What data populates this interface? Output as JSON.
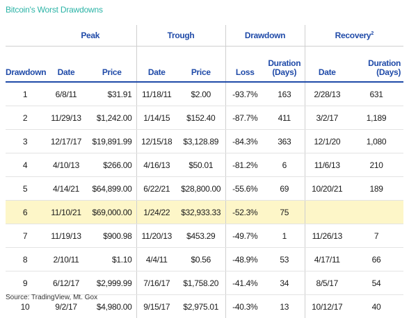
{
  "title": "Bitcoin's Worst Drawdowns",
  "groups": {
    "peak": "Peak",
    "trough": "Trough",
    "drawdown": "Drawdown",
    "recovery": "Recovery",
    "recovery_sup": "2"
  },
  "columns": {
    "drawdown": "Drawdown",
    "peak_date": "Date",
    "peak_price": "Price",
    "trough_date": "Date",
    "trough_price": "Price",
    "loss": "Loss",
    "duration_line1": "Duration",
    "duration_line2": "(Days)",
    "recovery_date": "Date",
    "recovery_duration_line1": "Duration",
    "recovery_duration_line2": "(Days)"
  },
  "rows": [
    {
      "rank": "1",
      "peak_date": "6/8/11",
      "peak_price": "$31.91",
      "trough_date": "11/18/11",
      "trough_price": "$2.00",
      "loss": "-93.7%",
      "duration": "163",
      "recovery_date": "2/28/13",
      "recovery_days": "631"
    },
    {
      "rank": "2",
      "peak_date": "11/29/13",
      "peak_price": "$1,242.00",
      "trough_date": "1/14/15",
      "trough_price": "$152.40",
      "loss": "-87.7%",
      "duration": "411",
      "recovery_date": "3/2/17",
      "recovery_days": "1,189"
    },
    {
      "rank": "3",
      "peak_date": "12/17/17",
      "peak_price": "$19,891.99",
      "trough_date": "12/15/18",
      "trough_price": "$3,128.89",
      "loss": "-84.3%",
      "duration": "363",
      "recovery_date": "12/1/20",
      "recovery_days": "1,080"
    },
    {
      "rank": "4",
      "peak_date": "4/10/13",
      "peak_price": "$266.00",
      "trough_date": "4/16/13",
      "trough_price": "$50.01",
      "loss": "-81.2%",
      "duration": "6",
      "recovery_date": "11/6/13",
      "recovery_days": "210"
    },
    {
      "rank": "5",
      "peak_date": "4/14/21",
      "peak_price": "$64,899.00",
      "trough_date": "6/22/21",
      "trough_price": "$28,800.00",
      "loss": "-55.6%",
      "duration": "69",
      "recovery_date": "10/20/21",
      "recovery_days": "189"
    },
    {
      "rank": "6",
      "peak_date": "11/10/21",
      "peak_price": "$69,000.00",
      "trough_date": "1/24/22",
      "trough_price": "$32,933.33",
      "loss": "-52.3%",
      "duration": "75",
      "recovery_date": "",
      "recovery_days": "",
      "highlight": true
    },
    {
      "rank": "7",
      "peak_date": "11/19/13",
      "peak_price": "$900.98",
      "trough_date": "11/20/13",
      "trough_price": "$453.29",
      "loss": "-49.7%",
      "duration": "1",
      "recovery_date": "11/26/13",
      "recovery_days": "7"
    },
    {
      "rank": "8",
      "peak_date": "2/10/11",
      "peak_price": "$1.10",
      "trough_date": "4/4/11",
      "trough_price": "$0.56",
      "loss": "-48.9%",
      "duration": "53",
      "recovery_date": "4/17/11",
      "recovery_days": "66"
    },
    {
      "rank": "9",
      "peak_date": "6/12/17",
      "peak_price": "$2,999.99",
      "trough_date": "7/16/17",
      "trough_price": "$1,758.20",
      "loss": "-41.4%",
      "duration": "34",
      "recovery_date": "8/5/17",
      "recovery_days": "54"
    },
    {
      "rank": "10",
      "peak_date": "9/2/17",
      "peak_price": "$4,980.00",
      "trough_date": "9/15/17",
      "trough_price": "$2,975.01",
      "loss": "-40.3%",
      "duration": "13",
      "recovery_date": "10/12/17",
      "recovery_days": "40"
    }
  ],
  "source": "Source: TradingView, Mt. Gox",
  "colors": {
    "title": "#2bb3a6",
    "header": "#1f4aa8",
    "highlight": "#fdf6c8"
  }
}
